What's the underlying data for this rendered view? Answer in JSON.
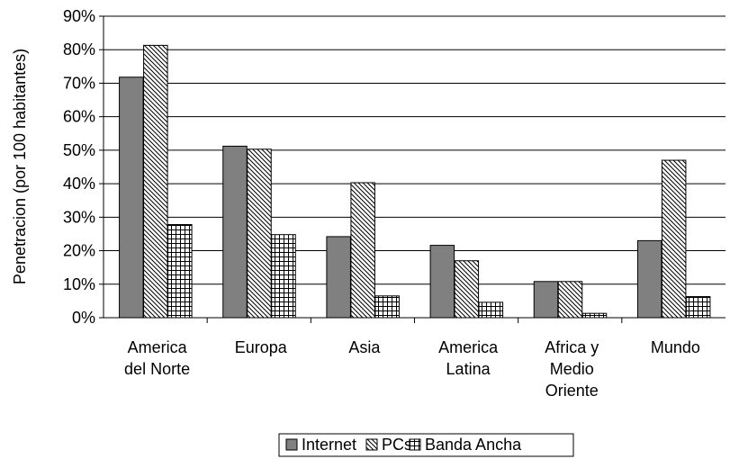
{
  "chart_data": {
    "type": "bar",
    "title": "",
    "xlabel": "",
    "ylabel": "Penetracion (por 100 habitantes)",
    "ylim": [
      0,
      90
    ],
    "yticks": [
      "0%",
      "10%",
      "20%",
      "30%",
      "40%",
      "50%",
      "60%",
      "70%",
      "80%",
      "90%"
    ],
    "grid": true,
    "legend_position": "bottom",
    "categories": [
      [
        "America",
        "del Norte"
      ],
      [
        "Europa"
      ],
      [
        "Asia"
      ],
      [
        "America",
        "Latina"
      ],
      [
        "Africa y",
        "Medio",
        "Oriente"
      ],
      [
        "Mundo"
      ]
    ],
    "series": [
      {
        "name": "Internet",
        "pattern": "solid",
        "color": "#808080",
        "values": [
          71.8,
          51.2,
          24.2,
          21.6,
          10.8,
          23.0
        ]
      },
      {
        "name": "PCs",
        "pattern": "diagonal",
        "color": "#ffffff",
        "values": [
          81.3,
          50.3,
          40.3,
          17.0,
          10.8,
          47.0
        ]
      },
      {
        "name": "Banda Ancha",
        "pattern": "grid",
        "color": "#ffffff",
        "values": [
          27.8,
          24.8,
          6.5,
          4.6,
          1.3,
          6.3
        ]
      }
    ]
  }
}
